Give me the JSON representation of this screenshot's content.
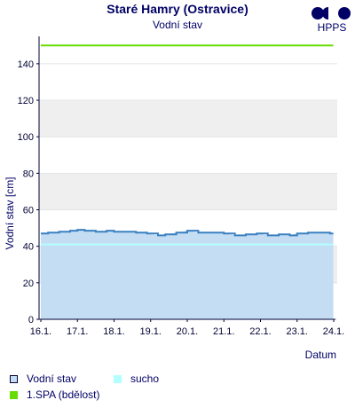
{
  "header": {
    "title": "Staré Hamry (Ostravice)",
    "subtitle": "Vodní stav",
    "logo_text": "HPPS"
  },
  "legend": {
    "items": [
      {
        "label": "Vodní stav",
        "color": "#c4ddf3",
        "border": "#000033"
      },
      {
        "label": "sucho",
        "color": "#b3ffff"
      },
      {
        "label": "1.SPA (bdělost)",
        "color": "#66dd00"
      }
    ]
  },
  "colors": {
    "area_fill": "#c4ddf3",
    "line": "#3a80c0",
    "drought": "#b3ffff",
    "spa": "#66dd00",
    "band": "#efefef",
    "axis_text": "#000033"
  },
  "chart_data": {
    "type": "area",
    "title": "Staré Hamry (Ostravice)",
    "subtitle": "Vodní stav",
    "xlabel": "Datum",
    "ylabel": "Vodní stav [cm]",
    "ylim": [
      0,
      155
    ],
    "yticks": [
      0,
      20,
      40,
      60,
      80,
      100,
      120,
      140
    ],
    "xticks": [
      "16.1.",
      "17.1.",
      "18.1.",
      "19.1.",
      "20.1.",
      "21.1.",
      "22.1.",
      "23.1.",
      "24.1."
    ],
    "grid": "horizontal bands",
    "series": [
      {
        "name": "Vodní stav",
        "x": [
          0,
          0.2,
          0.5,
          0.8,
          1.0,
          1.2,
          1.5,
          1.8,
          2.0,
          2.3,
          2.6,
          2.9,
          3.2,
          3.4,
          3.7,
          4.0,
          4.3,
          4.6,
          5.0,
          5.3,
          5.6,
          5.9,
          6.2,
          6.5,
          6.8,
          7.0,
          7.3,
          7.6,
          7.9,
          7.99
        ],
        "values": [
          47,
          47.5,
          48,
          48.5,
          49,
          48.5,
          48,
          48.5,
          48,
          48,
          47.5,
          47,
          46,
          46.5,
          47.5,
          48.5,
          47.5,
          47.5,
          47,
          46,
          46.5,
          47,
          46,
          46.5,
          46,
          47,
          47.5,
          47.5,
          47,
          47
        ]
      }
    ],
    "thresholds": [
      {
        "name": "sucho",
        "value": 41
      },
      {
        "name": "1.SPA (bdělost)",
        "value": 150
      }
    ]
  }
}
